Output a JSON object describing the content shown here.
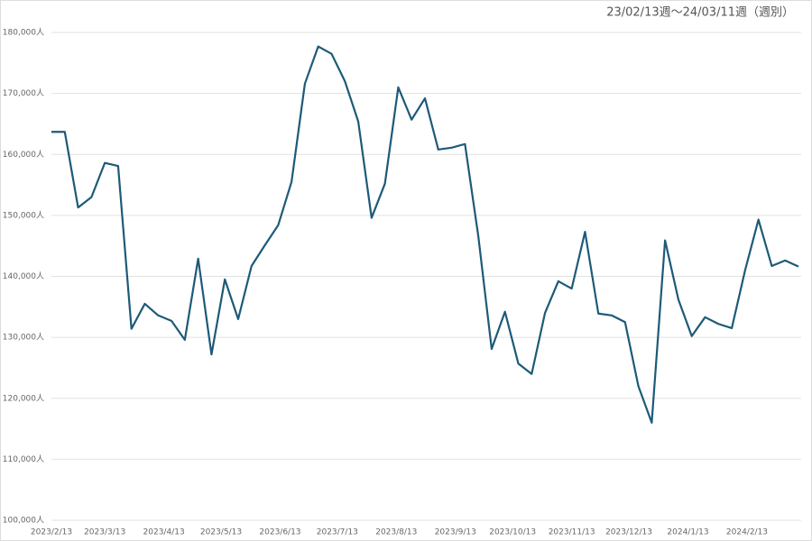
{
  "chart_data": {
    "type": "line",
    "title": "23/02/13週〜24/03/11週（週別）",
    "x": [
      "2023/2/13",
      "2023/2/20",
      "2023/2/27",
      "2023/3/6",
      "2023/3/13",
      "2023/3/20",
      "2023/3/27",
      "2023/4/3",
      "2023/4/10",
      "2023/4/17",
      "2023/4/24",
      "2023/5/1",
      "2023/5/8",
      "2023/5/15",
      "2023/5/22",
      "2023/5/29",
      "2023/6/5",
      "2023/6/12",
      "2023/6/19",
      "2023/6/26",
      "2023/7/3",
      "2023/7/10",
      "2023/7/17",
      "2023/7/24",
      "2023/7/31",
      "2023/8/7",
      "2023/8/14",
      "2023/8/21",
      "2023/8/28",
      "2023/9/4",
      "2023/9/11",
      "2023/9/18",
      "2023/9/25",
      "2023/10/2",
      "2023/10/9",
      "2023/10/16",
      "2023/10/23",
      "2023/10/30",
      "2023/11/6",
      "2023/11/13",
      "2023/11/20",
      "2023/11/27",
      "2023/12/4",
      "2023/12/11",
      "2023/12/18",
      "2023/12/25",
      "2024/1/1",
      "2024/1/8",
      "2024/1/15",
      "2024/1/22",
      "2024/1/29",
      "2024/2/5",
      "2024/2/12",
      "2024/2/19",
      "2024/2/26",
      "2024/3/4",
      "2024/3/11"
    ],
    "series": [
      {
        "color": "#1d5a78",
        "values": [
          163700,
          163700,
          151300,
          153000,
          158600,
          158100,
          131400,
          135500,
          133600,
          132700,
          129600,
          142900,
          127200,
          139500,
          133000,
          141700,
          145100,
          148400,
          155500,
          171600,
          177700,
          176500,
          172000,
          165400,
          149600,
          155200,
          171000,
          165700,
          169200,
          160800,
          161100,
          161700,
          146600,
          128100,
          134200,
          125700,
          124000,
          134000,
          139200,
          138000,
          147300,
          133900,
          133600,
          132500,
          122000,
          116000,
          145900,
          136200,
          130200,
          133300,
          132200,
          131500,
          141000,
          149300,
          141700,
          142600,
          141600
        ]
      }
    ],
    "xlim": [
      "2023/2/13",
      "2024/3/11"
    ],
    "xticks": [
      "2023/2/13",
      "2023/3/13",
      "2023/4/13",
      "2023/5/13",
      "2023/6/13",
      "2023/7/13",
      "2023/8/13",
      "2023/9/13",
      "2023/10/13",
      "2023/11/13",
      "2023/12/13",
      "2024/1/13",
      "2024/2/13"
    ],
    "ylim": [
      100000,
      180000
    ],
    "yticks": [
      {
        "value": 100000,
        "label": "100,000人"
      },
      {
        "value": 110000,
        "label": "110,000人"
      },
      {
        "value": 120000,
        "label": "120,000人"
      },
      {
        "value": 130000,
        "label": "130,000人"
      },
      {
        "value": 140000,
        "label": "140,000人"
      },
      {
        "value": 150000,
        "label": "150,000人"
      },
      {
        "value": 160000,
        "label": "160,000人"
      },
      {
        "value": 170000,
        "label": "170,000人"
      },
      {
        "value": 180000,
        "label": "180,000人"
      }
    ],
    "grid": true
  }
}
